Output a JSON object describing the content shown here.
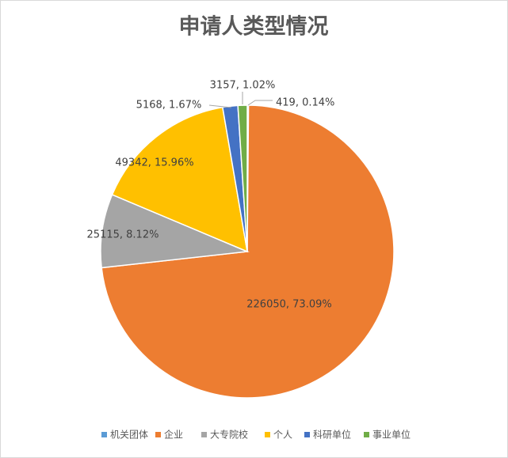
{
  "chart_data": {
    "type": "pie",
    "title": "申请人类型情况",
    "categories": [
      "机关团体",
      "企业",
      "大专院校",
      "个人",
      "科研单位",
      "事业单位"
    ],
    "values": [
      419,
      226050,
      25115,
      49342,
      5168,
      3157
    ],
    "value_labels": [
      "419, 0.14%",
      "226050, 73.09%",
      "25115, 8.12%",
      "49342, 15.96%",
      "5168, 1.67%",
      "3157, 1.02%"
    ],
    "colors": [
      "#5b9bd5",
      "#ed7d31",
      "#a5a5a5",
      "#ffc000",
      "#4472c4",
      "#70ad47"
    ],
    "legend": "bottom"
  }
}
